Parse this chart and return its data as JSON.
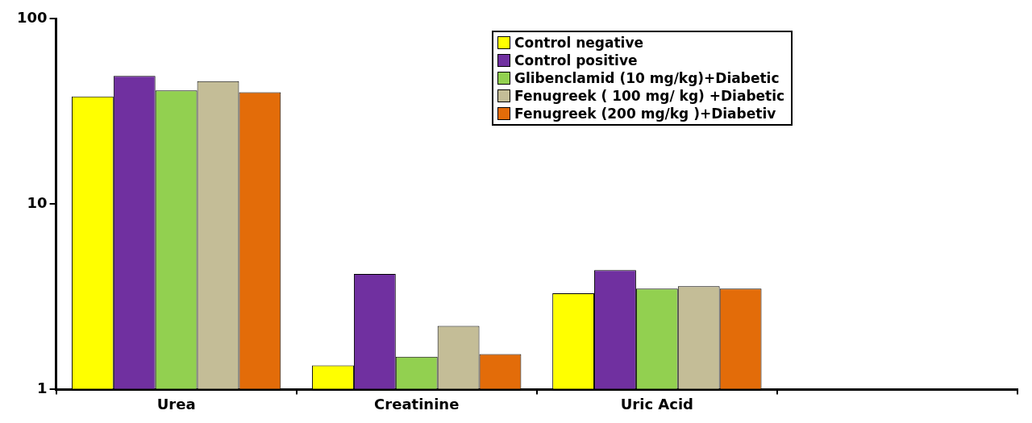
{
  "chart_data": {
    "type": "bar",
    "categories": [
      "Urea",
      "Creatinine",
      "Uric Acid",
      null
    ],
    "series": [
      {
        "name": "Control negative",
        "color": "#ffff00",
        "values": [
          38,
          1.35,
          3.3,
          null
        ]
      },
      {
        "name": "Control positive",
        "color": "#7030a0",
        "values": [
          49,
          4.2,
          4.4,
          null
        ]
      },
      {
        "name": "Glibenclamid (10 mg/kg)+Diabetic",
        "color": "#92d050",
        "values": [
          41,
          1.5,
          3.5,
          null
        ]
      },
      {
        "name": "Fenugreek ( 100 mg/ kg) +Diabetic",
        "color": "#c4bd97",
        "values": [
          46,
          2.2,
          3.6,
          null
        ]
      },
      {
        "name": "Fenugreek (200 mg/kg )+Diabetiv",
        "color": "#e36c09",
        "values": [
          40,
          1.55,
          3.5,
          null
        ]
      }
    ],
    "log": "y",
    "ylim": [
      1,
      100
    ],
    "yticks": [
      1,
      10,
      100
    ],
    "grid": false,
    "legend": "top right"
  }
}
